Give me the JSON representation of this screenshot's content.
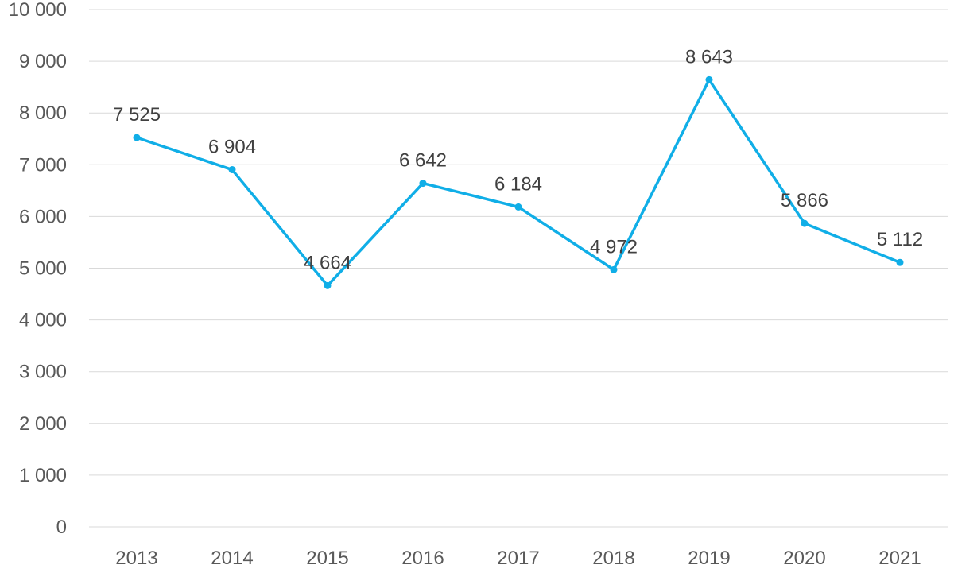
{
  "chart_data": {
    "type": "line",
    "categories": [
      "2013",
      "2014",
      "2015",
      "2016",
      "2017",
      "2018",
      "2019",
      "2020",
      "2021"
    ],
    "series": [
      {
        "values": [
          7525,
          6904,
          4664,
          6642,
          6184,
          4972,
          8643,
          5866,
          5112
        ],
        "data_labels": [
          "7 525",
          "6 904",
          "4 664",
          "6 642",
          "6 184",
          "4 972",
          "8 643",
          "5 866",
          "5 112"
        ],
        "color": "#10aee7"
      }
    ],
    "ylim": [
      0,
      10000
    ],
    "yticks": [
      0,
      1000,
      2000,
      3000,
      4000,
      5000,
      6000,
      7000,
      8000,
      9000,
      10000
    ],
    "ytick_labels": [
      "0",
      "1 000",
      "2 000",
      "3 000",
      "4 000",
      "5 000",
      "6 000",
      "7 000",
      "8 000",
      "9 000",
      "10 000"
    ],
    "title": "",
    "xlabel": "",
    "ylabel": "",
    "grid": "horizontal",
    "legend": "none",
    "colors": {
      "line": "#10aee7",
      "grid": "#d9d9d9",
      "tick_text": "#595959",
      "label_text": "#404040"
    }
  }
}
